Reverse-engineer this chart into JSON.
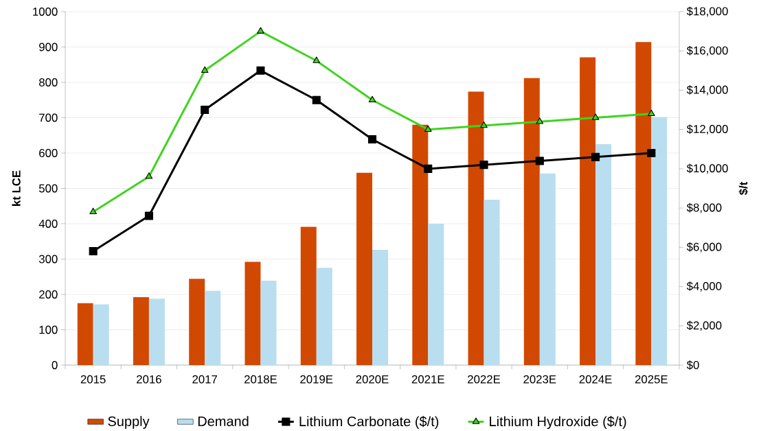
{
  "chart_data": {
    "type": "bar",
    "categories": [
      "2015",
      "2016",
      "2017",
      "2018E",
      "2019E",
      "2020E",
      "2021E",
      "2022E",
      "2023E",
      "2024E",
      "2025E"
    ],
    "ylabel": "kt LCE",
    "y2label": "$/t",
    "ylim": [
      0,
      1000
    ],
    "yticks": [
      0,
      100,
      200,
      300,
      400,
      500,
      600,
      700,
      800,
      900,
      1000
    ],
    "y2lim": [
      0,
      18000
    ],
    "y2ticks": [
      {
        "value": 0,
        "label": "$0"
      },
      {
        "value": 2000,
        "label": "$2,000"
      },
      {
        "value": 4000,
        "label": "$4,000"
      },
      {
        "value": 6000,
        "label": "$6,000"
      },
      {
        "value": 8000,
        "label": "$8,000"
      },
      {
        "value": 10000,
        "label": "$10,000"
      },
      {
        "value": 12000,
        "label": "$12,000"
      },
      {
        "value": 14000,
        "label": "$14,000"
      },
      {
        "value": 16000,
        "label": "$16,000"
      },
      {
        "value": 18000,
        "label": "$18,000"
      }
    ],
    "grid": "y",
    "legend": "bottom",
    "series": [
      {
        "name": "Supply",
        "color": "#d14900",
        "values": [
          175,
          192,
          244,
          292,
          391,
          544,
          680,
          774,
          812,
          871,
          914
        ]
      },
      {
        "name": "Demand",
        "color": "#b9def0",
        "values": [
          172,
          188,
          210,
          239,
          275,
          326,
          400,
          468,
          542,
          625,
          702
        ]
      },
      {
        "name": "Lithium Carbonate ($/t)",
        "type": "line",
        "axis": "y2",
        "color": "#000000",
        "marker": "square",
        "values": [
          5800,
          7600,
          13000,
          15000,
          13500,
          11500,
          10000,
          10200,
          10400,
          10600,
          10800
        ]
      },
      {
        "name": "Lithium Hydroxide ($/t)",
        "type": "line",
        "axis": "y2",
        "color": "#3fd41e",
        "marker": "triangle",
        "values": [
          7800,
          9600,
          15000,
          17000,
          15500,
          13500,
          12000,
          12200,
          12400,
          12600,
          12800
        ]
      }
    ]
  }
}
